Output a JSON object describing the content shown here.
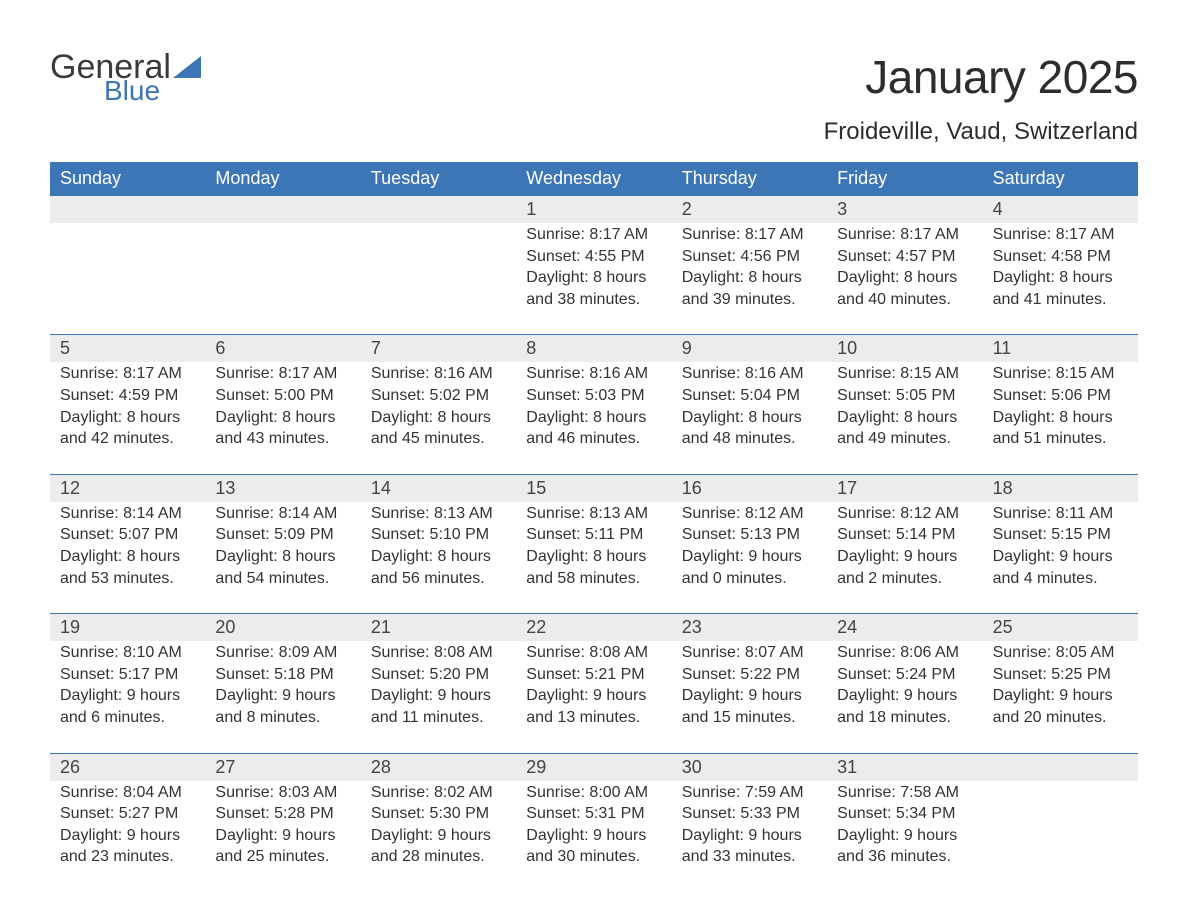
{
  "logo": {
    "text1": "General",
    "text2": "Blue",
    "brand_color": "#3d76b6"
  },
  "title": "January 2025",
  "subtitle": "Froideville, Vaud, Switzerland",
  "colors": {
    "header_bg": "#3d76b6",
    "header_text": "#ffffff",
    "daynum_bg": "#ececec",
    "text": "#333333",
    "rule": "#3d76b6",
    "page_bg": "#ffffff"
  },
  "days_of_week": [
    "Sunday",
    "Monday",
    "Tuesday",
    "Wednesday",
    "Thursday",
    "Friday",
    "Saturday"
  ],
  "weeks": [
    [
      {
        "n": "",
        "sunrise": "",
        "sunset": "",
        "daylight": ""
      },
      {
        "n": "",
        "sunrise": "",
        "sunset": "",
        "daylight": ""
      },
      {
        "n": "",
        "sunrise": "",
        "sunset": "",
        "daylight": ""
      },
      {
        "n": "1",
        "sunrise": "Sunrise: 8:17 AM",
        "sunset": "Sunset: 4:55 PM",
        "daylight": "Daylight: 8 hours and 38 minutes."
      },
      {
        "n": "2",
        "sunrise": "Sunrise: 8:17 AM",
        "sunset": "Sunset: 4:56 PM",
        "daylight": "Daylight: 8 hours and 39 minutes."
      },
      {
        "n": "3",
        "sunrise": "Sunrise: 8:17 AM",
        "sunset": "Sunset: 4:57 PM",
        "daylight": "Daylight: 8 hours and 40 minutes."
      },
      {
        "n": "4",
        "sunrise": "Sunrise: 8:17 AM",
        "sunset": "Sunset: 4:58 PM",
        "daylight": "Daylight: 8 hours and 41 minutes."
      }
    ],
    [
      {
        "n": "5",
        "sunrise": "Sunrise: 8:17 AM",
        "sunset": "Sunset: 4:59 PM",
        "daylight": "Daylight: 8 hours and 42 minutes."
      },
      {
        "n": "6",
        "sunrise": "Sunrise: 8:17 AM",
        "sunset": "Sunset: 5:00 PM",
        "daylight": "Daylight: 8 hours and 43 minutes."
      },
      {
        "n": "7",
        "sunrise": "Sunrise: 8:16 AM",
        "sunset": "Sunset: 5:02 PM",
        "daylight": "Daylight: 8 hours and 45 minutes."
      },
      {
        "n": "8",
        "sunrise": "Sunrise: 8:16 AM",
        "sunset": "Sunset: 5:03 PM",
        "daylight": "Daylight: 8 hours and 46 minutes."
      },
      {
        "n": "9",
        "sunrise": "Sunrise: 8:16 AM",
        "sunset": "Sunset: 5:04 PM",
        "daylight": "Daylight: 8 hours and 48 minutes."
      },
      {
        "n": "10",
        "sunrise": "Sunrise: 8:15 AM",
        "sunset": "Sunset: 5:05 PM",
        "daylight": "Daylight: 8 hours and 49 minutes."
      },
      {
        "n": "11",
        "sunrise": "Sunrise: 8:15 AM",
        "sunset": "Sunset: 5:06 PM",
        "daylight": "Daylight: 8 hours and 51 minutes."
      }
    ],
    [
      {
        "n": "12",
        "sunrise": "Sunrise: 8:14 AM",
        "sunset": "Sunset: 5:07 PM",
        "daylight": "Daylight: 8 hours and 53 minutes."
      },
      {
        "n": "13",
        "sunrise": "Sunrise: 8:14 AM",
        "sunset": "Sunset: 5:09 PM",
        "daylight": "Daylight: 8 hours and 54 minutes."
      },
      {
        "n": "14",
        "sunrise": "Sunrise: 8:13 AM",
        "sunset": "Sunset: 5:10 PM",
        "daylight": "Daylight: 8 hours and 56 minutes."
      },
      {
        "n": "15",
        "sunrise": "Sunrise: 8:13 AM",
        "sunset": "Sunset: 5:11 PM",
        "daylight": "Daylight: 8 hours and 58 minutes."
      },
      {
        "n": "16",
        "sunrise": "Sunrise: 8:12 AM",
        "sunset": "Sunset: 5:13 PM",
        "daylight": "Daylight: 9 hours and 0 minutes."
      },
      {
        "n": "17",
        "sunrise": "Sunrise: 8:12 AM",
        "sunset": "Sunset: 5:14 PM",
        "daylight": "Daylight: 9 hours and 2 minutes."
      },
      {
        "n": "18",
        "sunrise": "Sunrise: 8:11 AM",
        "sunset": "Sunset: 5:15 PM",
        "daylight": "Daylight: 9 hours and 4 minutes."
      }
    ],
    [
      {
        "n": "19",
        "sunrise": "Sunrise: 8:10 AM",
        "sunset": "Sunset: 5:17 PM",
        "daylight": "Daylight: 9 hours and 6 minutes."
      },
      {
        "n": "20",
        "sunrise": "Sunrise: 8:09 AM",
        "sunset": "Sunset: 5:18 PM",
        "daylight": "Daylight: 9 hours and 8 minutes."
      },
      {
        "n": "21",
        "sunrise": "Sunrise: 8:08 AM",
        "sunset": "Sunset: 5:20 PM",
        "daylight": "Daylight: 9 hours and 11 minutes."
      },
      {
        "n": "22",
        "sunrise": "Sunrise: 8:08 AM",
        "sunset": "Sunset: 5:21 PM",
        "daylight": "Daylight: 9 hours and 13 minutes."
      },
      {
        "n": "23",
        "sunrise": "Sunrise: 8:07 AM",
        "sunset": "Sunset: 5:22 PM",
        "daylight": "Daylight: 9 hours and 15 minutes."
      },
      {
        "n": "24",
        "sunrise": "Sunrise: 8:06 AM",
        "sunset": "Sunset: 5:24 PM",
        "daylight": "Daylight: 9 hours and 18 minutes."
      },
      {
        "n": "25",
        "sunrise": "Sunrise: 8:05 AM",
        "sunset": "Sunset: 5:25 PM",
        "daylight": "Daylight: 9 hours and 20 minutes."
      }
    ],
    [
      {
        "n": "26",
        "sunrise": "Sunrise: 8:04 AM",
        "sunset": "Sunset: 5:27 PM",
        "daylight": "Daylight: 9 hours and 23 minutes."
      },
      {
        "n": "27",
        "sunrise": "Sunrise: 8:03 AM",
        "sunset": "Sunset: 5:28 PM",
        "daylight": "Daylight: 9 hours and 25 minutes."
      },
      {
        "n": "28",
        "sunrise": "Sunrise: 8:02 AM",
        "sunset": "Sunset: 5:30 PM",
        "daylight": "Daylight: 9 hours and 28 minutes."
      },
      {
        "n": "29",
        "sunrise": "Sunrise: 8:00 AM",
        "sunset": "Sunset: 5:31 PM",
        "daylight": "Daylight: 9 hours and 30 minutes."
      },
      {
        "n": "30",
        "sunrise": "Sunrise: 7:59 AM",
        "sunset": "Sunset: 5:33 PM",
        "daylight": "Daylight: 9 hours and 33 minutes."
      },
      {
        "n": "31",
        "sunrise": "Sunrise: 7:58 AM",
        "sunset": "Sunset: 5:34 PM",
        "daylight": "Daylight: 9 hours and 36 minutes."
      },
      {
        "n": "",
        "sunrise": "",
        "sunset": "",
        "daylight": ""
      }
    ]
  ]
}
